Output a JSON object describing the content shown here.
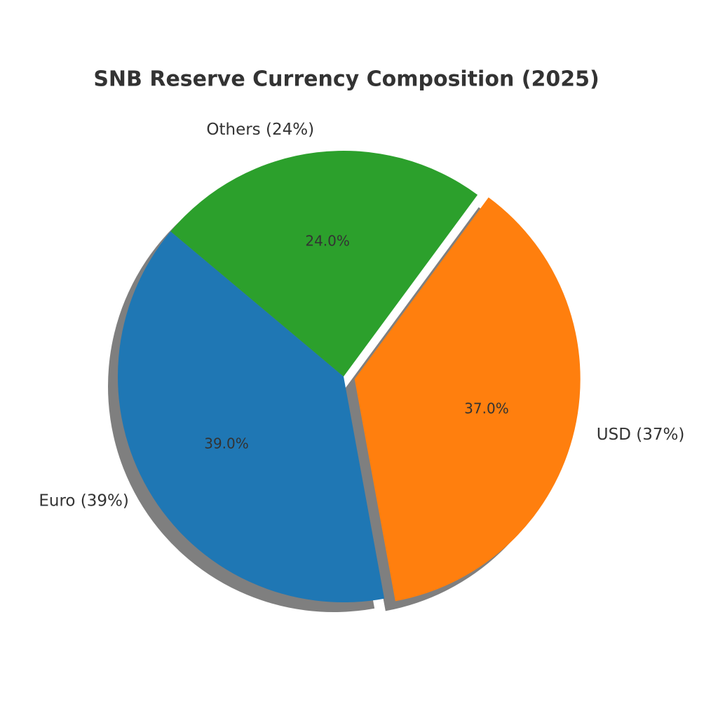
{
  "chart_data": {
    "type": "pie",
    "title": "SNB Reserve Currency Composition (2025)",
    "categories": [
      "Euro (39%)",
      "USD (37%)",
      "Others (24%)"
    ],
    "values": [
      39,
      37,
      24
    ],
    "value_labels": [
      "39.0%",
      "37.0%",
      "24.0%"
    ],
    "colors": [
      "#1f77b4",
      "#ff7f0e",
      "#2ca02c"
    ],
    "explode": [
      0,
      0.05,
      0
    ],
    "startangle": 140,
    "shadow": true
  }
}
